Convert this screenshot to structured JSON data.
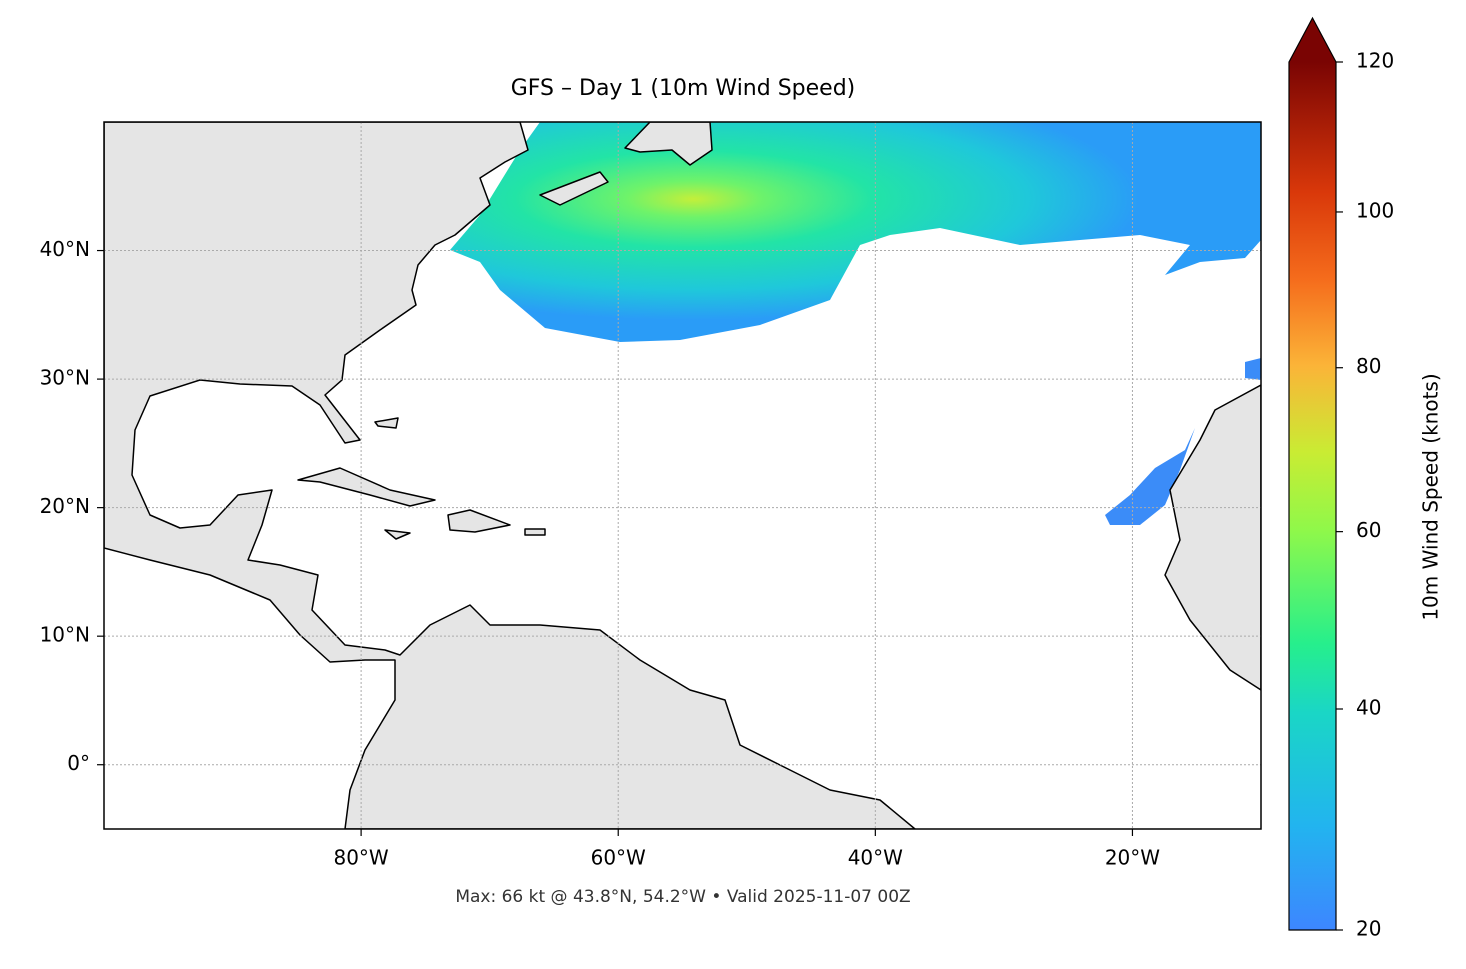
{
  "chart_data": {
    "type": "map",
    "title": "GFS – Day 1 (10m Wind Speed)",
    "footer": "Max: 66 kt @ 43.8°N, 54.2°W • Valid 2025-11-07 00Z",
    "xlim": [
      -100,
      -10
    ],
    "ylim": [
      -5,
      50
    ],
    "xticks": [
      {
        "value": -80,
        "label": "80°W"
      },
      {
        "value": -60,
        "label": "60°W"
      },
      {
        "value": -40,
        "label": "40°W"
      },
      {
        "value": -20,
        "label": "20°W"
      }
    ],
    "yticks": [
      {
        "value": 0,
        "label": "0°"
      },
      {
        "value": 10,
        "label": "10°N"
      },
      {
        "value": 20,
        "label": "20°N"
      },
      {
        "value": 30,
        "label": "30°N"
      },
      {
        "value": 40,
        "label": "40°N"
      }
    ],
    "grid": true,
    "colorbar": {
      "label": "10m Wind Speed (knots)",
      "lim": [
        20,
        120
      ],
      "ticks": [
        20,
        40,
        60,
        80,
        100,
        120
      ],
      "norm": "power",
      "gamma": 0.85,
      "extend": "max"
    }
  }
}
